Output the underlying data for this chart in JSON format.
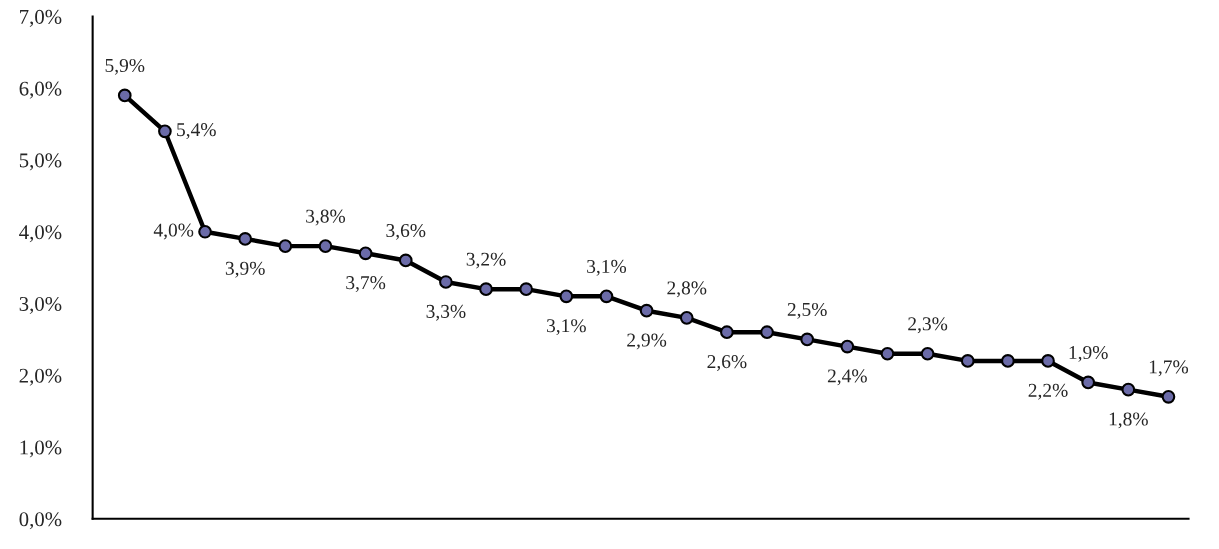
{
  "chart_data": {
    "type": "line",
    "categories": [
      null,
      null,
      null,
      null,
      null,
      null,
      null,
      null,
      null,
      null,
      null,
      null,
      null,
      null,
      null,
      null,
      null,
      null,
      null,
      null,
      null,
      null,
      null,
      null,
      null,
      null,
      null
    ],
    "series": [
      {
        "color": "#6b6ba8",
        "values": [
          5.9,
          5.4,
          4.0,
          3.9,
          3.8,
          3.8,
          3.7,
          3.6,
          3.3,
          3.2,
          3.2,
          3.1,
          3.1,
          2.9,
          2.8,
          2.6,
          2.6,
          2.5,
          2.4,
          2.3,
          2.3,
          2.2,
          2.2,
          2.2,
          1.9,
          1.8,
          1.7
        ],
        "value_labels": [
          "5,9%",
          "5,4%",
          "4,0%",
          "3,9%",
          null,
          "3,8%",
          "3,7%",
          "3,6%",
          "3,3%",
          "3,2%",
          null,
          "3,1%",
          "3,1%",
          "2,9%",
          "2,8%",
          "2,6%",
          null,
          "2,5%",
          "2,4%",
          null,
          "2,3%",
          null,
          null,
          "2,2%",
          "1,9%",
          "1,8%",
          "1,7%"
        ]
      }
    ],
    "ylim": [
      0,
      7
    ],
    "yticks": [
      {
        "value": 0,
        "label": "0,0%"
      },
      {
        "value": 1,
        "label": "1,0%"
      },
      {
        "value": 2,
        "label": "2,0%"
      },
      {
        "value": 3,
        "label": "3,0%"
      },
      {
        "value": 4,
        "label": "4,0%"
      },
      {
        "value": 5,
        "label": "5,0%"
      },
      {
        "value": 6,
        "label": "6,0%"
      },
      {
        "value": 7,
        "label": "7,0%"
      }
    ],
    "marker": "circle",
    "line_style": "solid",
    "grid": false,
    "legend": false
  }
}
